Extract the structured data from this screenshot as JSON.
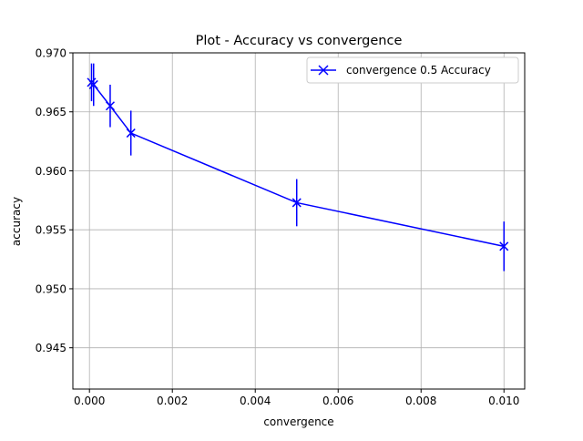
{
  "chart_data": {
    "type": "line",
    "title": "Plot - Accuracy vs convergence",
    "xlabel": "convergence",
    "ylabel": "accuracy",
    "xlim": [
      -0.0004,
      0.0105
    ],
    "ylim": [
      0.9415,
      0.97
    ],
    "x_ticks": [
      0.0,
      0.002,
      0.004,
      0.006,
      0.008,
      0.01
    ],
    "x_tick_labels": [
      "0.000",
      "0.002",
      "0.004",
      "0.006",
      "0.008",
      "0.010"
    ],
    "y_ticks": [
      0.945,
      0.95,
      0.955,
      0.96,
      0.965,
      0.97
    ],
    "y_tick_labels": [
      "0.945",
      "0.950",
      "0.955",
      "0.960",
      "0.965",
      "0.970"
    ],
    "grid": true,
    "legend": {
      "position": "top-right"
    },
    "series": [
      {
        "name": "convergence 0.5 Accuracy",
        "color": "#0000ff",
        "marker": "x",
        "x": [
          5e-05,
          0.0001,
          0.0005,
          0.001,
          0.005,
          0.01
        ],
        "y": [
          0.9675,
          0.9673,
          0.9655,
          0.9632,
          0.9573,
          0.9536
        ],
        "error": [
          0.0016,
          0.0018,
          0.0018,
          0.0019,
          0.002,
          0.0021
        ]
      }
    ]
  }
}
